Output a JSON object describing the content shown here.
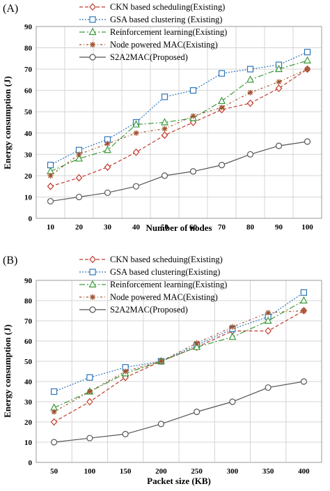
{
  "series_styles": [
    {
      "color": "#c0392b",
      "marker": "diamond",
      "dash": "5,3"
    },
    {
      "color": "#2e75b6",
      "marker": "square",
      "dash": "2,2"
    },
    {
      "color": "#3a9a3a",
      "marker": "triangle",
      "dash": "8,3,2,3"
    },
    {
      "color": "#a0522d",
      "marker": "star",
      "dash": "3,3,1,3"
    },
    {
      "color": "#555555",
      "marker": "circle",
      "dash": ""
    }
  ],
  "chart_data": [
    {
      "panel_label": "(A)",
      "type": "line",
      "xlabel": "Number of nodes",
      "ylabel": "Energy consumption (J)",
      "x": [
        10,
        20,
        30,
        40,
        50,
        60,
        70,
        80,
        90,
        100
      ],
      "x_ticks": [
        "10",
        "20",
        "30",
        "40",
        "50",
        "60",
        "70",
        "80",
        "90",
        "100"
      ],
      "ylim": [
        0,
        90
      ],
      "y_ticks": [
        "0",
        "10",
        "20",
        "30",
        "40",
        "50",
        "60",
        "70",
        "80",
        "90"
      ],
      "grid": true,
      "legend_position": "top-center",
      "series": [
        {
          "name": "CKN based scheduling(Existing)",
          "values": [
            15,
            19,
            24,
            31,
            39,
            45,
            51,
            54,
            61,
            70
          ]
        },
        {
          "name": "GSA based clustering (Existing)",
          "values": [
            25,
            32,
            37,
            45,
            57,
            60,
            68,
            70,
            72,
            78
          ]
        },
        {
          "name": "Reinforcement learning(Existing)",
          "values": [
            22,
            28,
            32,
            44,
            45,
            47,
            55,
            65,
            70,
            74
          ]
        },
        {
          "name": "Node powered MAC(Existing)",
          "values": [
            20,
            30,
            35,
            40,
            42,
            48,
            52,
            59,
            64,
            70
          ]
        },
        {
          "name": "S2A2MAC(Proposed)",
          "values": [
            8,
            10,
            12,
            15,
            20,
            22,
            25,
            30,
            34,
            36
          ]
        }
      ]
    },
    {
      "panel_label": "(B)",
      "type": "line",
      "xlabel": "Packet size (KB)",
      "ylabel": "Energy consumption (J)",
      "x": [
        50,
        100,
        150,
        200,
        250,
        300,
        350,
        400
      ],
      "x_ticks": [
        "50",
        "100",
        "150",
        "200",
        "250",
        "300",
        "350",
        "400"
      ],
      "ylim": [
        0,
        90
      ],
      "y_ticks": [
        "0",
        "10",
        "20",
        "30",
        "40",
        "50",
        "60",
        "70",
        "80",
        "90"
      ],
      "grid": true,
      "legend_position": "top-center",
      "series": [
        {
          "name": "CKN based scheduing(Existing)",
          "values": [
            20,
            30,
            42,
            50,
            57,
            65,
            65,
            75
          ]
        },
        {
          "name": "GSA based clustering(Existing)",
          "values": [
            35,
            42,
            47,
            50,
            58,
            66,
            72,
            84
          ]
        },
        {
          "name": "Reinforcement learning(Existing)",
          "values": [
            27,
            35,
            44,
            50,
            57,
            62,
            70,
            80
          ]
        },
        {
          "name": "Node powered MAC(Existing)",
          "values": [
            25,
            35,
            45,
            50,
            59,
            67,
            74,
            75
          ]
        },
        {
          "name": "S2A2MAC(Proposed)",
          "values": [
            10,
            12,
            14,
            19,
            25,
            30,
            37,
            40
          ]
        }
      ]
    }
  ]
}
